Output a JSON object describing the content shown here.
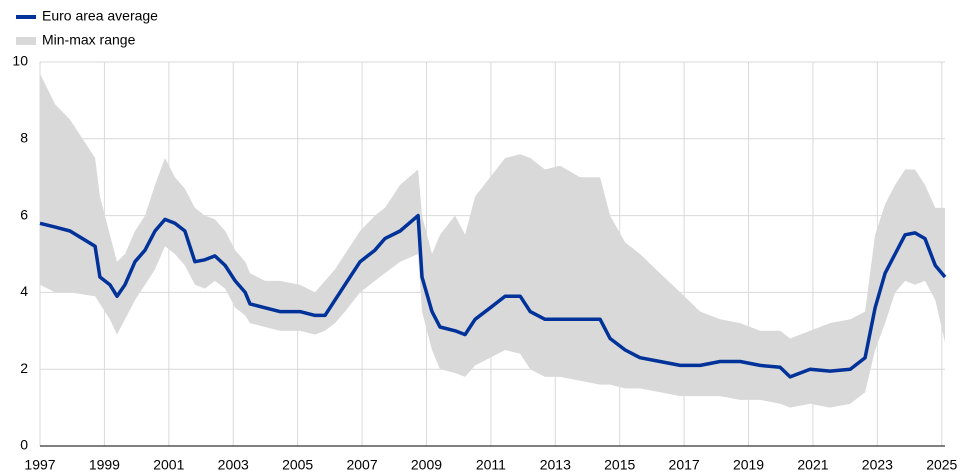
{
  "chart_data": {
    "type": "line",
    "x": [
      1997.0,
      1997.47,
      1997.93,
      1998.71,
      1998.86,
      1999.17,
      1999.39,
      1999.64,
      1999.95,
      2000.26,
      2000.57,
      2000.88,
      2001.19,
      2001.5,
      2001.81,
      2002.12,
      2002.43,
      2002.75,
      2003.06,
      2003.37,
      2003.52,
      2003.99,
      2004.45,
      2005.07,
      2005.54,
      2005.85,
      2006.16,
      2006.47,
      2006.94,
      2007.4,
      2007.71,
      2008.18,
      2008.74,
      2008.86,
      2009.17,
      2009.42,
      2009.89,
      2010.2,
      2010.51,
      2010.98,
      2011.44,
      2011.91,
      2012.22,
      2012.68,
      2013.15,
      2013.77,
      2014.39,
      2014.7,
      2015.17,
      2015.63,
      2016.25,
      2016.88,
      2017.5,
      2018.12,
      2018.74,
      2019.36,
      2019.98,
      2020.29,
      2020.91,
      2021.53,
      2022.16,
      2022.62,
      2022.93,
      2023.24,
      2023.55,
      2023.86,
      2024.17,
      2024.48,
      2024.8,
      2025.1
    ],
    "series": [
      {
        "name": "Min-max range",
        "color": "#d9d9d9",
        "upper": [
          9.7,
          8.9,
          8.5,
          7.5,
          6.5,
          5.5,
          4.8,
          5.0,
          5.6,
          6.0,
          6.8,
          7.5,
          7.0,
          6.7,
          6.2,
          6.0,
          5.9,
          5.6,
          5.1,
          4.8,
          4.5,
          4.3,
          4.3,
          4.2,
          4.0,
          4.3,
          4.6,
          5.0,
          5.6,
          6.0,
          6.2,
          6.8,
          7.2,
          6.0,
          5.0,
          5.5,
          6.0,
          5.5,
          6.5,
          7.0,
          7.5,
          7.6,
          7.5,
          7.2,
          7.3,
          7.0,
          7.0,
          6.0,
          5.3,
          5.0,
          4.5,
          4.0,
          3.5,
          3.3,
          3.2,
          3.0,
          3.0,
          2.8,
          3.0,
          3.2,
          3.3,
          3.5,
          5.5,
          6.3,
          6.8,
          7.2,
          7.2,
          6.8,
          6.2,
          6.2
        ],
        "lower": [
          4.2,
          4.0,
          4.0,
          3.9,
          3.7,
          3.3,
          2.9,
          3.3,
          3.8,
          4.2,
          4.6,
          5.2,
          5.0,
          4.7,
          4.2,
          4.1,
          4.3,
          4.1,
          3.6,
          3.4,
          3.2,
          3.1,
          3.0,
          3.0,
          2.9,
          3.0,
          3.2,
          3.5,
          4.0,
          4.3,
          4.5,
          4.8,
          5.0,
          3.5,
          2.5,
          2.0,
          1.9,
          1.8,
          2.1,
          2.3,
          2.5,
          2.4,
          2.0,
          1.8,
          1.8,
          1.7,
          1.6,
          1.6,
          1.5,
          1.5,
          1.4,
          1.3,
          1.3,
          1.3,
          1.2,
          1.2,
          1.1,
          1.0,
          1.1,
          1.0,
          1.1,
          1.4,
          2.5,
          3.2,
          4.0,
          4.3,
          4.2,
          4.3,
          3.8,
          2.7
        ]
      },
      {
        "name": "Euro area average",
        "color": "#003299",
        "values": [
          5.8,
          5.7,
          5.6,
          5.2,
          4.4,
          4.2,
          3.9,
          4.2,
          4.8,
          5.1,
          5.6,
          5.9,
          5.8,
          5.6,
          4.8,
          4.85,
          4.95,
          4.7,
          4.3,
          4.0,
          3.7,
          3.6,
          3.5,
          3.5,
          3.4,
          3.4,
          3.8,
          4.2,
          4.8,
          5.1,
          5.4,
          5.6,
          6.0,
          4.4,
          3.5,
          3.1,
          3.0,
          2.9,
          3.3,
          3.6,
          3.9,
          3.9,
          3.5,
          3.3,
          3.3,
          3.3,
          3.3,
          2.8,
          2.5,
          2.3,
          2.2,
          2.1,
          2.1,
          2.2,
          2.2,
          2.1,
          2.05,
          1.8,
          2.0,
          1.95,
          2.0,
          2.3,
          3.6,
          4.5,
          5.0,
          5.5,
          5.55,
          5.4,
          4.7,
          4.4
        ]
      }
    ],
    "xlim": [
      1997,
      2025.1
    ],
    "xticks": [
      1997,
      1999,
      2001,
      2003,
      2005,
      2007,
      2009,
      2011,
      2013,
      2015,
      2017,
      2019,
      2021,
      2023,
      2025
    ],
    "ylim": [
      0,
      10
    ],
    "yticks": [
      0,
      2,
      4,
      6,
      8,
      10
    ],
    "grid": true
  }
}
